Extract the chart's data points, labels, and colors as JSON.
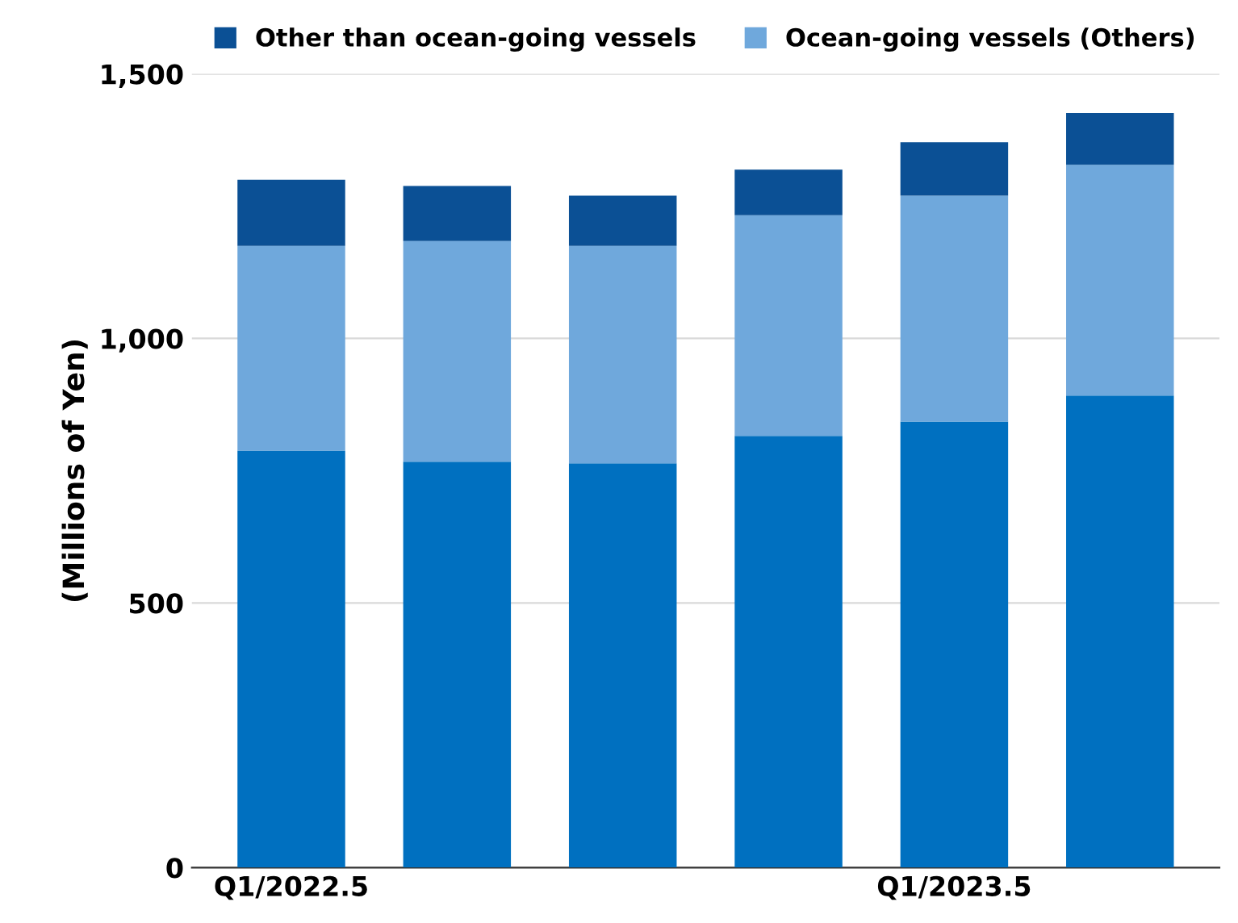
{
  "chart_data": {
    "type": "bar",
    "stacked": true,
    "ylabel": "(Millions of Yen)",
    "categories": [
      "Q1/2022.5",
      null,
      null,
      null,
      "Q1/2023.5",
      null
    ],
    "series": [
      {
        "color": "#0070c0",
        "values": [
          788,
          767,
          764,
          816,
          843,
          892
        ]
      },
      {
        "name": "Ocean-going vessels (Others)",
        "color": "#6fa8dc",
        "values": [
          387,
          417,
          411,
          417,
          427,
          436
        ]
      },
      {
        "name": "Other than ocean-going vessels",
        "color": "#0b5095",
        "values": [
          125,
          104,
          95,
          86,
          101,
          98
        ]
      }
    ],
    "ylim": [
      0,
      1500
    ],
    "yticks": [
      {
        "value": 0,
        "label": "0"
      },
      {
        "value": 500,
        "label": "500"
      },
      {
        "value": 1000,
        "label": "1,000"
      },
      {
        "value": 1500,
        "label": "1,500"
      }
    ],
    "grid": "y",
    "legend": "top"
  }
}
